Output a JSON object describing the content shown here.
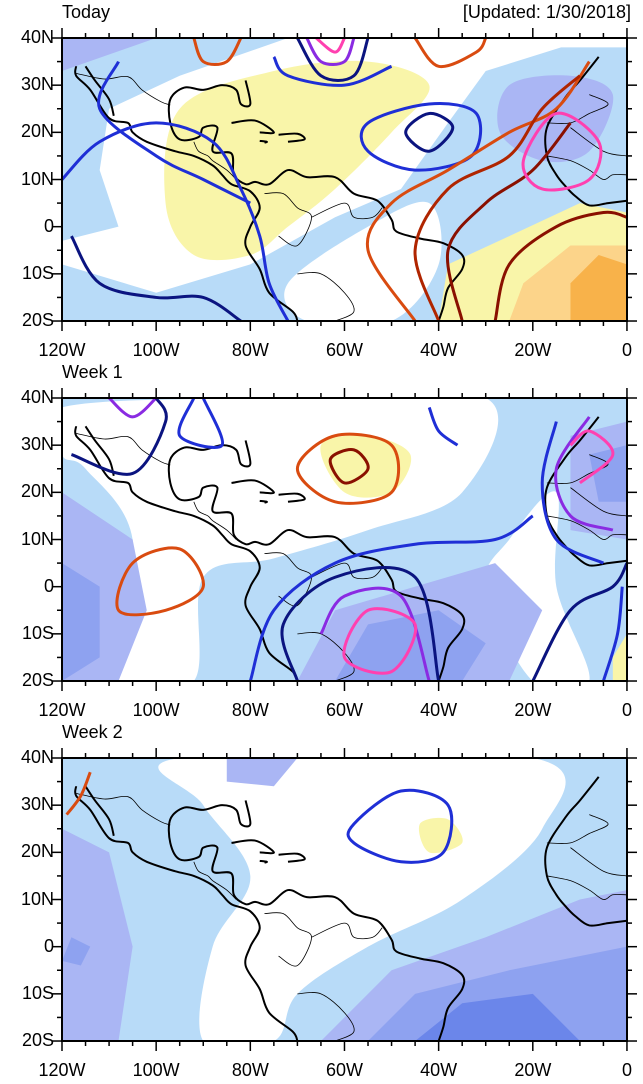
{
  "updated": "[Updated: 1/30/2018]",
  "panels": [
    {
      "title": "Today"
    },
    {
      "title": "Week 1"
    },
    {
      "title": "Week 2"
    }
  ],
  "axes": {
    "lat_labels": [
      "40N",
      "30N",
      "20N",
      "10N",
      "0",
      "10S",
      "20S"
    ],
    "lon_labels": [
      "120W",
      "100W",
      "80W",
      "60W",
      "40W",
      "20W",
      "0"
    ],
    "lat_range": [
      -20,
      40
    ],
    "lon_range": [
      -120,
      0
    ]
  },
  "colors": {
    "light_blue": "#b8dbf8",
    "lavender": "#aab6f4",
    "mid_blue": "#8ea2f0",
    "dark_blue": "#6b86ea",
    "yellow": "#f9f5a9",
    "light_orange": "#fcd48a",
    "orange": "#f8b24a"
  }
}
